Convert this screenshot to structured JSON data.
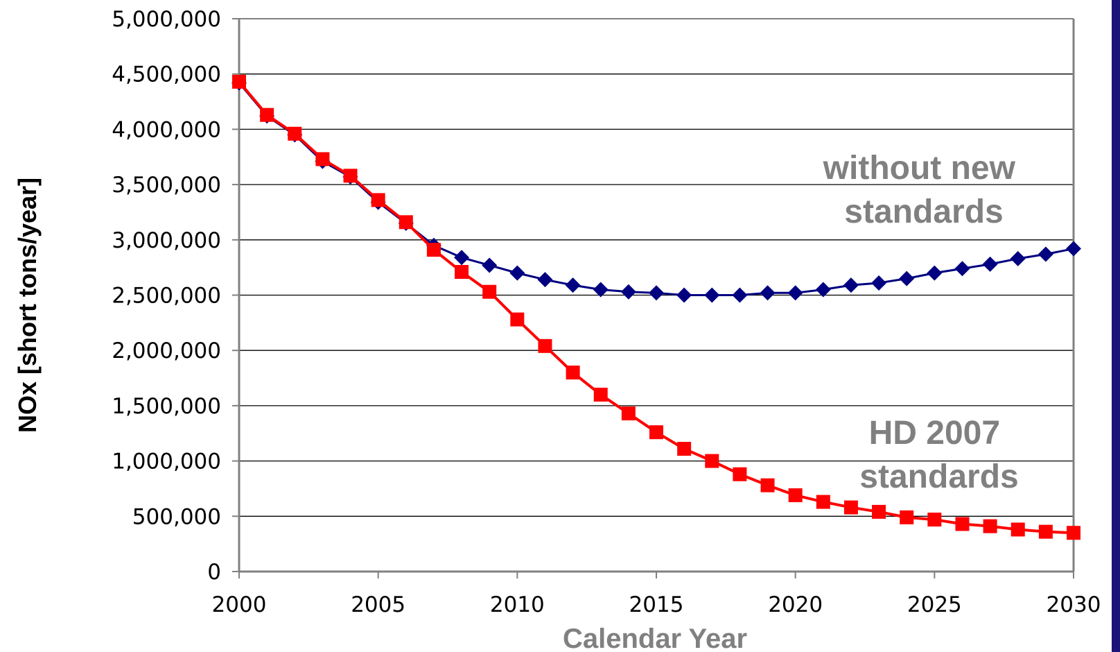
{
  "chart_data": {
    "type": "line",
    "title": "",
    "xlabel": "Calendar Year",
    "ylabel": "NOx [short tons/year]",
    "xlim": [
      2000,
      2030
    ],
    "ylim": [
      0,
      5000000
    ],
    "x_ticks": [
      2000,
      2005,
      2010,
      2015,
      2020,
      2025,
      2030
    ],
    "x_tick_labels": [
      "2000",
      "2005",
      "2010",
      "2015",
      "2020",
      "2025",
      "2030"
    ],
    "y_ticks": [
      0,
      500000,
      1000000,
      1500000,
      2000000,
      2500000,
      3000000,
      3500000,
      4000000,
      4500000,
      5000000
    ],
    "y_tick_labels": [
      "0",
      "500,000",
      "1,000,000",
      "1,500,000",
      "2,000,000",
      "2,500,000",
      "3,000,000",
      "3,500,000",
      "4,000,000",
      "4,500,000",
      "5,000,000"
    ],
    "grid": "horizontal",
    "annotations": [
      {
        "lines": [
          "without new",
          "standards"
        ],
        "color": "#808080"
      },
      {
        "lines": [
          "HD 2007",
          "standards"
        ],
        "color": "#808080"
      }
    ],
    "x": [
      2000,
      2001,
      2002,
      2003,
      2004,
      2005,
      2006,
      2007,
      2008,
      2009,
      2010,
      2011,
      2012,
      2013,
      2014,
      2015,
      2016,
      2017,
      2018,
      2019,
      2020,
      2021,
      2022,
      2023,
      2024,
      2025,
      2026,
      2027,
      2028,
      2029,
      2030
    ],
    "series": [
      {
        "marker": "diamond",
        "color": "#000080",
        "values": [
          4420000,
          4120000,
          3950000,
          3710000,
          3570000,
          3340000,
          3150000,
          2950000,
          2840000,
          2770000,
          2700000,
          2640000,
          2590000,
          2550000,
          2530000,
          2520000,
          2500000,
          2500000,
          2500000,
          2520000,
          2520000,
          2550000,
          2590000,
          2610000,
          2650000,
          2700000,
          2740000,
          2780000,
          2830000,
          2870000,
          2920000
        ]
      },
      {
        "marker": "square",
        "color": "#ff0000",
        "values": [
          4430000,
          4130000,
          3960000,
          3730000,
          3580000,
          3360000,
          3160000,
          2910000,
          2710000,
          2530000,
          2280000,
          2040000,
          1800000,
          1600000,
          1430000,
          1260000,
          1110000,
          1000000,
          880000,
          780000,
          690000,
          630000,
          580000,
          540000,
          490000,
          470000,
          430000,
          410000,
          380000,
          360000,
          350000
        ]
      }
    ]
  },
  "decor": {
    "right_bar_color": "#1c1577"
  }
}
